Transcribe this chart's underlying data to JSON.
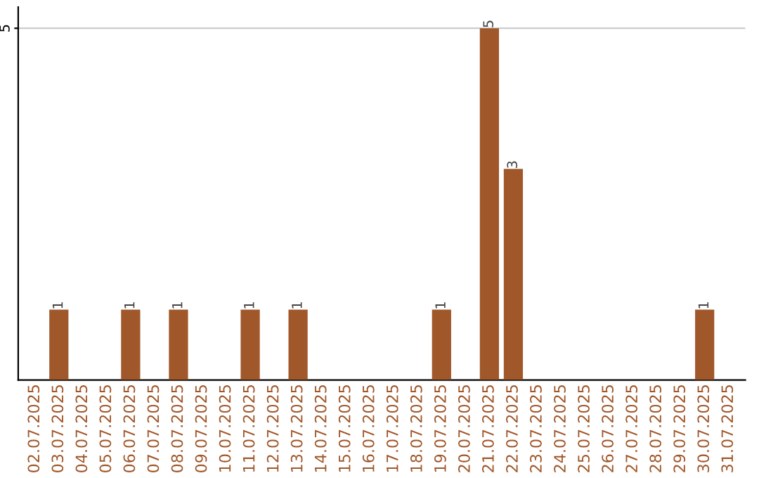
{
  "chart_data": {
    "type": "bar",
    "categories": [
      "02.07.2025",
      "03.07.2025",
      "04.07.2025",
      "05.07.2025",
      "06.07.2025",
      "07.07.2025",
      "08.07.2025",
      "09.07.2025",
      "10.07.2025",
      "11.07.2025",
      "12.07.2025",
      "13.07.2025",
      "14.07.2025",
      "15.07.2025",
      "16.07.2025",
      "17.07.2025",
      "18.07.2025",
      "19.07.2025",
      "20.07.2025",
      "21.07.2025",
      "22.07.2025",
      "23.07.2025",
      "24.07.2025",
      "25.07.2025",
      "26.07.2025",
      "27.07.2025",
      "28.07.2025",
      "29.07.2025",
      "30.07.2025",
      "31.07.2025"
    ],
    "values": [
      0,
      1,
      0,
      0,
      1,
      0,
      1,
      0,
      0,
      1,
      0,
      1,
      0,
      0,
      0,
      0,
      0,
      1,
      0,
      5,
      3,
      0,
      0,
      0,
      0,
      0,
      0,
      0,
      1,
      0
    ],
    "value_labels": [
      null,
      "1",
      null,
      null,
      "1",
      null,
      "1",
      null,
      null,
      "1",
      null,
      "1",
      null,
      null,
      null,
      null,
      null,
      "1",
      null,
      "5",
      "3",
      null,
      null,
      null,
      null,
      null,
      null,
      null,
      "1",
      null
    ],
    "color": "#a0572a",
    "ylim": [
      0,
      5.3
    ],
    "yticks": [
      5
    ],
    "grid": "y"
  }
}
